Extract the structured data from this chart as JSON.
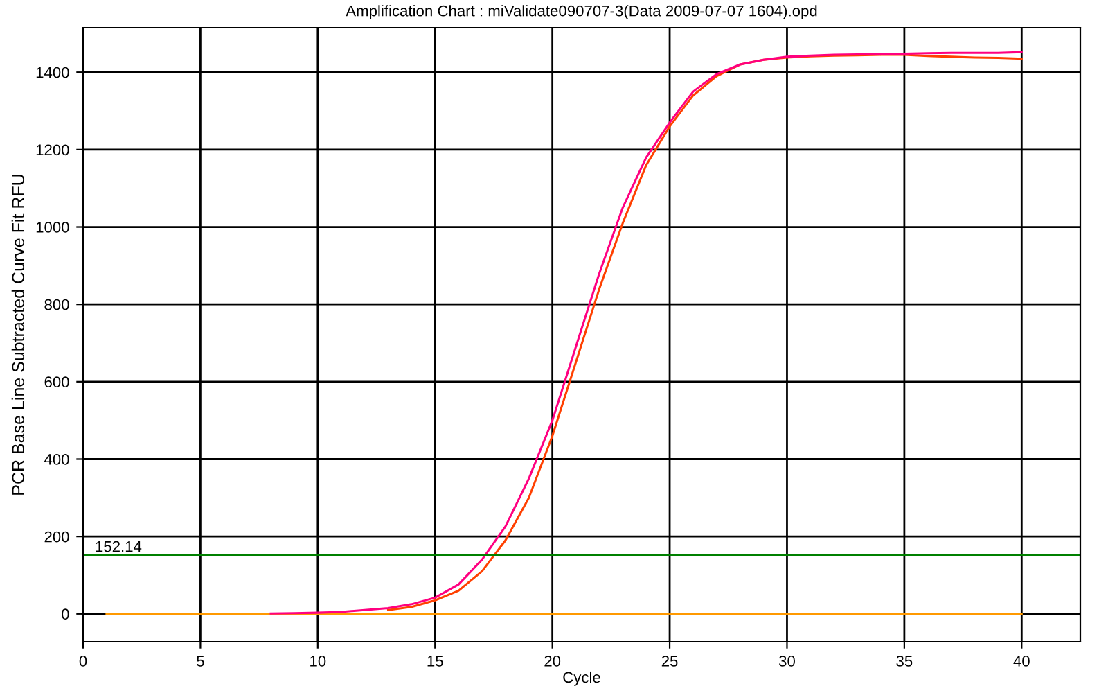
{
  "chart_data": {
    "type": "line",
    "title": "Amplification Chart : miValidate090707-3(Data 2009-07-07 1604).opd",
    "xlabel": "Cycle",
    "ylabel": "PCR Base Line Subtracted Curve Fit RFU",
    "x": [
      1,
      2,
      3,
      4,
      5,
      6,
      7,
      8,
      9,
      10,
      11,
      12,
      13,
      14,
      15,
      16,
      17,
      18,
      19,
      20,
      21,
      22,
      23,
      24,
      25,
      26,
      27,
      28,
      29,
      30,
      31,
      32,
      33,
      34,
      35,
      36,
      37,
      38,
      39,
      40
    ],
    "series": [
      {
        "color": "#ff9900",
        "values": [
          0,
          0,
          0,
          0,
          0,
          0,
          0,
          0,
          0,
          0,
          0,
          0,
          0,
          0,
          0,
          0,
          0,
          0,
          0,
          0,
          0,
          0,
          0,
          0,
          0,
          0,
          0,
          0,
          0,
          0,
          0,
          0,
          0,
          0,
          0,
          0,
          0,
          0,
          0,
          0
        ]
      },
      {
        "color": "#ff4000",
        "values": [
          null,
          null,
          null,
          null,
          null,
          null,
          null,
          null,
          null,
          null,
          null,
          null,
          10,
          18,
          35,
          60,
          110,
          190,
          300,
          460,
          650,
          840,
          1010,
          1160,
          1260,
          1340,
          1390,
          1420,
          1432,
          1438,
          1441,
          1443,
          1444,
          1445,
          1445,
          1442,
          1440,
          1438,
          1437,
          1435
        ]
      },
      {
        "color": "#ff0080",
        "values": [
          null,
          null,
          null,
          null,
          null,
          null,
          null,
          1,
          2,
          3,
          5,
          10,
          15,
          25,
          42,
          76,
          140,
          226,
          350,
          500,
          690,
          880,
          1050,
          1180,
          1270,
          1350,
          1395,
          1420,
          1432,
          1440,
          1443,
          1445,
          1446,
          1447,
          1448,
          1449,
          1450,
          1450,
          1450,
          1452
        ]
      }
    ],
    "xlim": [
      0,
      42.5
    ],
    "ylim": [
      -72,
      1515
    ],
    "xticks": [
      0,
      5,
      10,
      15,
      20,
      25,
      30,
      35,
      40
    ],
    "yticks": [
      0,
      200,
      400,
      600,
      800,
      1000,
      1200,
      1400
    ],
    "ref_lines": [
      {
        "axis": "y",
        "value": 152.14,
        "label": "152.14",
        "color": "#008000"
      }
    ],
    "grid": true,
    "marker": "none",
    "line_style": "solid",
    "legend": false
  }
}
